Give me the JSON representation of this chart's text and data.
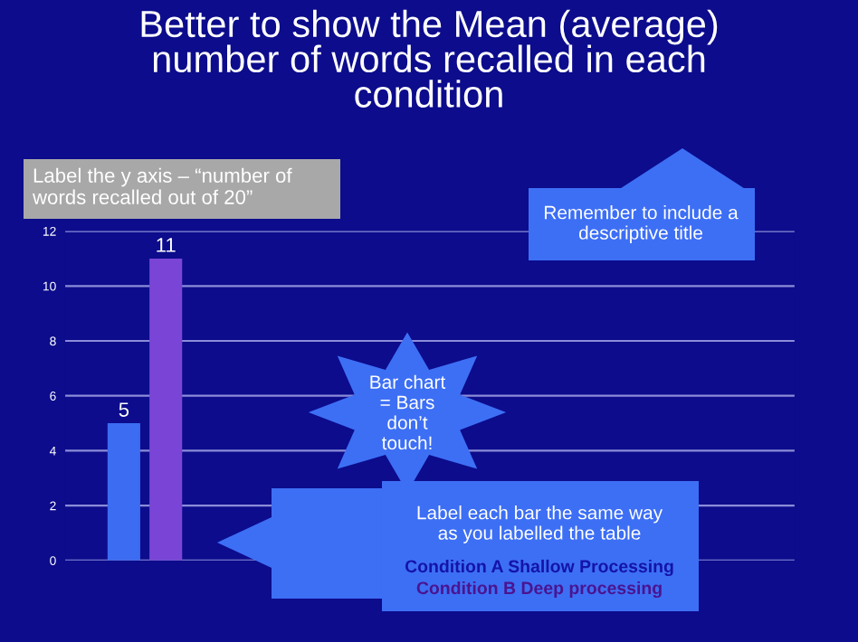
{
  "chart_data": {
    "type": "bar",
    "title": "Better to show the Mean (average) number of words recalled in each condition",
    "categories": [
      null,
      null
    ],
    "values": [
      5,
      11
    ],
    "colors": [
      "#3b6cf2",
      "#7a45d6"
    ],
    "ylim": [
      0,
      12
    ],
    "yticks": [
      0,
      2,
      4,
      6,
      8,
      10,
      12
    ],
    "grid": "y",
    "data_labels": true,
    "annotations": [
      "Label the y axis – “number of words recalled out of 20”",
      "Remember to include a descriptive title",
      "Bar chart = Bars don’t touch!",
      "Label each bar the same way as you labelled the table",
      "Condition A Shallow Processing",
      "Condition B Deep processing"
    ]
  }
}
